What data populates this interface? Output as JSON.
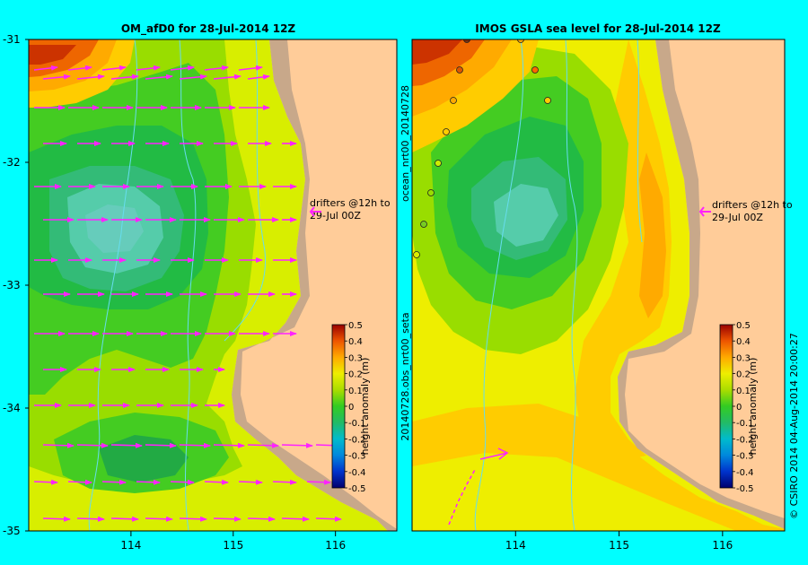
{
  "colors": {
    "background": "#00ffff",
    "land": "#ffcc99",
    "bathymetry_shelf": "#c8a88a",
    "vector": "#ff22ff",
    "contour_line": "#66ddee"
  },
  "chart_data": [
    {
      "type": "heatmap",
      "title": "OM_afD0 for 28-Jul-2014 12Z",
      "x_ticks": [
        114,
        115,
        116
      ],
      "y_ticks": [
        -31,
        -32,
        -33,
        -34,
        -35
      ],
      "xlim": [
        113.0,
        116.6
      ],
      "ylim": [
        -35.0,
        -31.0
      ],
      "annotation_line1": "drifters @12h to",
      "annotation_line2": "29-Jul 00Z",
      "colorbar": {
        "label": "height anomaly (m)",
        "ticks": [
          "0.5",
          "0.4",
          "0.3",
          "0.2",
          "0.1",
          "0",
          "-0.1",
          "-0.2",
          "-0.3",
          "-0.4",
          "-0.5"
        ],
        "range": [
          -0.5,
          0.5
        ]
      },
      "overlays": "current vectors (magenta arrows), mostly eastward"
    },
    {
      "type": "heatmap",
      "title": "IMOS GSLA sea level  for 28-Jul-2014 12Z",
      "x_ticks": [
        114,
        115,
        116
      ],
      "xlim": [
        113.0,
        116.6
      ],
      "ylim": [
        -35.0,
        -31.0
      ],
      "annotation_line1": "drifters @12h to",
      "annotation_line2": "29-Jul 00Z",
      "colorbar": {
        "label": "height anomaly (m)",
        "ticks": [
          "0.5",
          "0.4",
          "0.3",
          "0.2",
          "0.1",
          "0",
          "-0.1",
          "-0.2",
          "-0.3",
          "-0.4",
          "-0.5"
        ],
        "range": [
          -0.5,
          0.5
        ]
      },
      "overlays": "altimeter track observations (small circles)"
    }
  ],
  "side_labels": {
    "obs_label": "20140728.obs_nrt00_seta",
    "ocean_label": "ocean_nrt00_20140728",
    "credit": "© CSIRO 2014   04-Aug-2014 20:00:27"
  }
}
